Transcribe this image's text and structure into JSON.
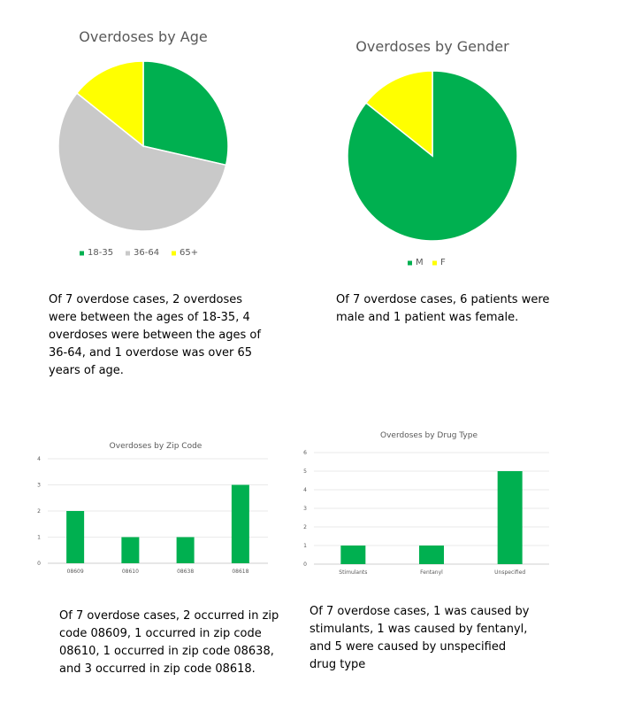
{
  "chart_data": [
    {
      "type": "pie",
      "title": "Overdoses by Age",
      "categories": [
        "18-35",
        "36-64",
        "65+"
      ],
      "values": [
        2,
        4,
        1
      ],
      "colors": [
        "#00b050",
        "#c9c9c9",
        "#ffff00"
      ],
      "legend_position": "bottom"
    },
    {
      "type": "pie",
      "title": "Overdoses by Gender",
      "categories": [
        "M",
        "F"
      ],
      "values": [
        6,
        1
      ],
      "colors": [
        "#00b050",
        "#ffff00"
      ],
      "legend_position": "bottom"
    },
    {
      "type": "bar",
      "title": "Overdoses by Zip Code",
      "categories": [
        "08609",
        "08610",
        "08638",
        "08618"
      ],
      "values": [
        2,
        1,
        1,
        3
      ],
      "ylim": [
        0,
        4
      ],
      "yticks": [
        "0",
        "1",
        "2",
        "3",
        "4"
      ],
      "color": "#00b050",
      "grid": true
    },
    {
      "type": "bar",
      "title": "Overdoses by Drug Type",
      "categories": [
        "Stimulants",
        "Fentanyl",
        "Unspecified"
      ],
      "values": [
        1,
        1,
        5
      ],
      "ylim": [
        0,
        6
      ],
      "yticks": [
        "0",
        "1",
        "2",
        "3",
        "4",
        "5",
        "6"
      ],
      "color": "#00b050",
      "grid": true
    }
  ],
  "descriptions": {
    "age": "Of 7 overdose cases, 2 overdoses\nwere between the ages of 18-35, 4\noverdoses were between the ages of\n36-64, and 1 overdose was over 65\nyears of age.",
    "gender": "Of 7 overdose cases, 6 patients were\nmale and 1 patient was female.",
    "zip": "Of 7 overdose cases, 2 occurred in zip\ncode 08609, 1 occurred in zip code\n08610, 1 occurred in zip code 08638,\nand 3 occurred in zip code 08618.",
    "drug": "Of 7 overdose cases, 1 was caused by\nstimulants, 1 was caused by fentanyl,\nand 5 were caused by unspecified\ndrug type"
  }
}
